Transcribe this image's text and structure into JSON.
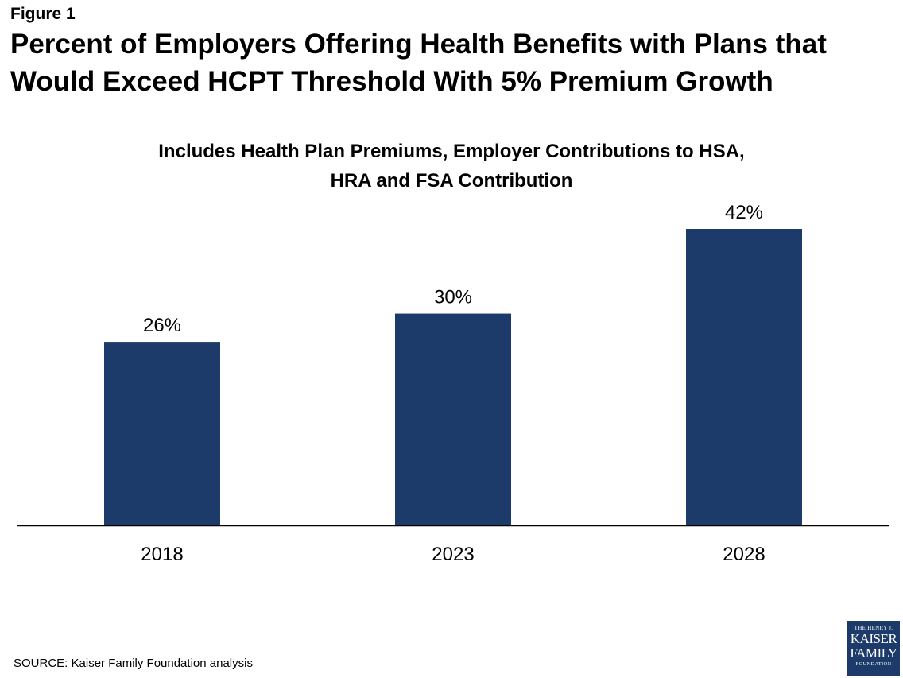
{
  "figure_label": "Figure 1",
  "title_line1": "Percent of Employers Offering Health Benefits with Plans that",
  "title_line2": "Would Exceed HCPT Threshold With 5% Premium Growth",
  "subtitle_line1": "Includes Health Plan Premiums, Employer Contributions to HSA,",
  "subtitle_line2": "HRA and FSA Contribution",
  "source": "SOURCE: Kaiser Family Foundation analysis",
  "logo": {
    "line1": "THE HENRY J.",
    "line2": "KAISER",
    "line3": "FAMILY",
    "line4": "FOUNDATION"
  },
  "colors": {
    "bar": "#1d3b6a",
    "axis": "#000000"
  },
  "chart_data": {
    "type": "bar",
    "categories": [
      "2018",
      "2023",
      "2028"
    ],
    "values": [
      26,
      30,
      42
    ],
    "data_labels": [
      "26%",
      "30%",
      "42%"
    ],
    "title": "Percent of Employers Offering Health Benefits with Plans that Would Exceed HCPT Threshold With 5% Premium Growth",
    "subtitle": "Includes Health Plan Premiums, Employer Contributions to HSA, HRA and FSA Contribution",
    "xlabel": "",
    "ylabel": "",
    "ylim": [
      0,
      42
    ],
    "grid": false,
    "legend": "none"
  }
}
